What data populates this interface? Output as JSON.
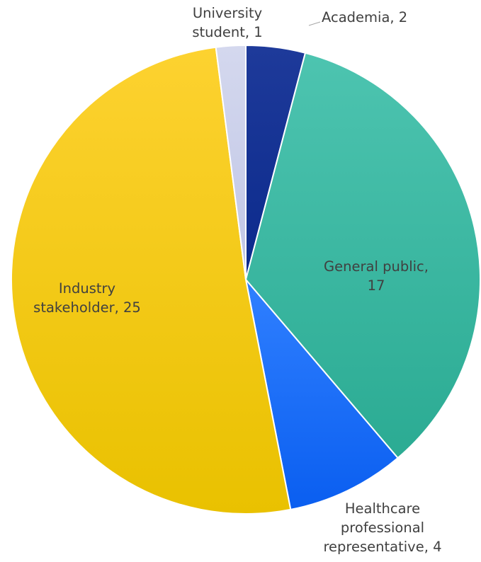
{
  "chart_data": {
    "type": "pie",
    "title": "",
    "slices": [
      {
        "label": "Academia, 2",
        "name": "Academia",
        "value": 2,
        "color": "#1e3a9a",
        "color_dark": "#0b2a8c"
      },
      {
        "label": "General public, 17",
        "name": "General public",
        "value": 17,
        "color": "#4dc4b0",
        "color_dark": "#2bab93"
      },
      {
        "label": "Healthcare professional representative, 4",
        "name": "Healthcare professional representative",
        "value": 4,
        "color": "#3080ff",
        "color_dark": "#0a5ef0"
      },
      {
        "label": "Industry stakeholder, 25",
        "name": "Industry stakeholder",
        "value": 25,
        "color": "#fdd230",
        "color_dark": "#e9c100"
      },
      {
        "label": "University student, 1",
        "name": "University student",
        "value": 1,
        "color": "#d4d8ee",
        "color_dark": "#c0c6e6"
      }
    ]
  }
}
